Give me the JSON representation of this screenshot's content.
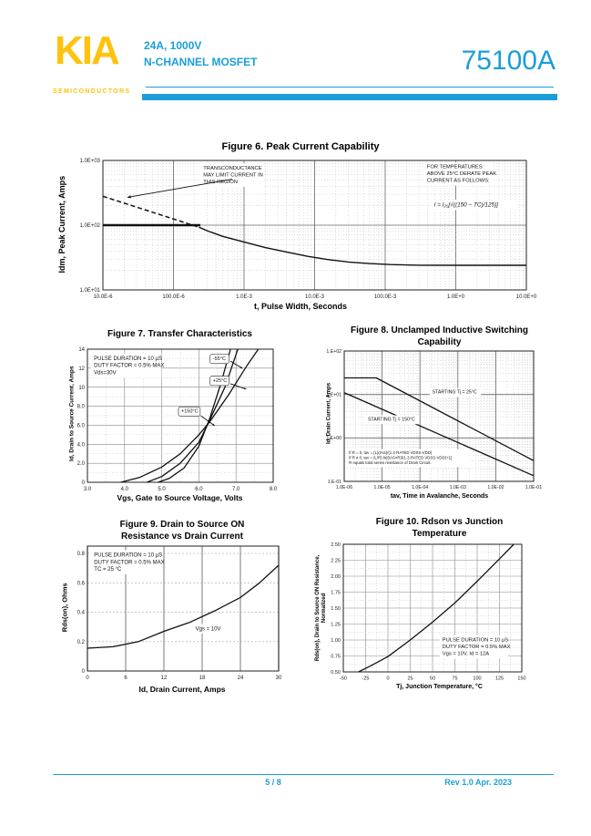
{
  "header": {
    "logo": "KIA",
    "logo_sub": "SEMICONDUCTORS",
    "subtitle_line1": "24A, 1000V",
    "subtitle_line2": "N-CHANNEL MOSFET",
    "part_number": "75100A",
    "accent_color": "#1B9DD9",
    "logo_color": "#FFC20E"
  },
  "footer": {
    "page": "5 / 8",
    "revision": "Rev 1.0 Apr. 2023"
  },
  "chart_data": [
    {
      "id": "fig6",
      "type": "line",
      "title": "Figure 6. Peak Current Capability",
      "xlabel": "t, Pulse Width, Seconds",
      "ylabel": "Idm, Peak Current, Amps",
      "xscale": "log",
      "yscale": "log",
      "xlim": [
        1e-05,
        10
      ],
      "ylim": [
        10,
        1000
      ],
      "xticks": [
        {
          "v": 1e-05,
          "label": "10.0E-6"
        },
        {
          "v": 0.0001,
          "label": "100.0E-6"
        },
        {
          "v": 0.001,
          "label": "1.0E-3"
        },
        {
          "v": 0.01,
          "label": "10.0E-3"
        },
        {
          "v": 0.1,
          "label": "100.0E-3"
        },
        {
          "v": 1,
          "label": "1.0E+0"
        },
        {
          "v": 10,
          "label": "10.0E+0"
        }
      ],
      "yticks": [
        {
          "v": 1000,
          "label": "1.0E+03"
        },
        {
          "v": 100,
          "label": "1.0E+02"
        },
        {
          "v": 10,
          "label": "1.0E+01"
        }
      ],
      "series": [
        {
          "name": "transconductance-limit",
          "dash": "5,3",
          "width": 1.5,
          "points": [
            [
              1e-05,
              280
            ],
            [
              0.00023,
              93
            ]
          ]
        },
        {
          "name": "idm-pulsed-limit-100A",
          "width": 2.6,
          "points": [
            [
              1e-05,
              100
            ],
            [
              0.00024,
              100
            ]
          ]
        },
        {
          "name": "peak-current-capability",
          "width": 1.4,
          "points": [
            [
              0.00023,
              93
            ],
            [
              0.0003,
              82
            ],
            [
              0.0005,
              67
            ],
            [
              0.001,
              55
            ],
            [
              0.002,
              45
            ],
            [
              0.004,
              38.5
            ],
            [
              0.008,
              33
            ],
            [
              0.015,
              29.5
            ],
            [
              0.03,
              27
            ],
            [
              0.06,
              25.5
            ],
            [
              0.12,
              24.6
            ],
            [
              0.3,
              24.1
            ],
            [
              1,
              24
            ],
            [
              10,
              24
            ]
          ]
        }
      ],
      "annotations": [
        {
          "lines": [
            "TRANSCONDUCTANCE",
            "MAY LIMIT CURRENT IN",
            "THIS REGION"
          ],
          "fx": 0.235,
          "fy": 0.03,
          "size": 5.8
        },
        {
          "lines": [
            "FOR TEMPERATURES",
            "ABOVE 25°C DERATE PEAK",
            "CURRENT AS FOLLOWS:"
          ],
          "fx": 0.763,
          "fy": 0.02,
          "size": 5.8
        },
        {
          "lines": [
            "I = I₂₅[√((150 − TC)/125)]"
          ],
          "fx": 0.78,
          "fy": 0.31,
          "size": 6.4,
          "italic": true
        }
      ],
      "arrows": [
        {
          "f": [
            0.305,
            0.145
          ],
          "t": [
            0.058,
            0.285
          ]
        }
      ]
    },
    {
      "id": "fig7",
      "type": "line",
      "title": "Figure 7. Transfer Characteristics",
      "xlabel": "Vgs, Gate to Source Voltage, Volts",
      "ylabel": "Id, Drain to Source Current, Amps",
      "xscale": "linear",
      "yscale": "linear",
      "xlim": [
        3,
        8
      ],
      "ylim": [
        0,
        14
      ],
      "xticks": [
        {
          "v": 3,
          "label": "3.0"
        },
        {
          "v": 4,
          "label": "4.0"
        },
        {
          "v": 5,
          "label": "5.0"
        },
        {
          "v": 6,
          "label": "6.0"
        },
        {
          "v": 7,
          "label": "7.0"
        },
        {
          "v": 8,
          "label": "8.0"
        }
      ],
      "yticks": [
        {
          "v": 14,
          "label": "14"
        },
        {
          "v": 12,
          "label": "12"
        },
        {
          "v": 10,
          "label": "10"
        },
        {
          "v": 8,
          "label": "8.0"
        },
        {
          "v": 6,
          "label": "6.0"
        },
        {
          "v": 4,
          "label": "4.0"
        },
        {
          "v": 2,
          "label": "2.0"
        },
        {
          "v": 0,
          "label": "0"
        }
      ],
      "series": [
        {
          "name": "-55°C",
          "width": 1.3,
          "points": [
            [
              4.9,
              0
            ],
            [
              5.2,
              0.4
            ],
            [
              5.6,
              1.5
            ],
            [
              6.0,
              3.8
            ],
            [
              6.3,
              6.8
            ],
            [
              6.6,
              10.5
            ],
            [
              6.85,
              14
            ]
          ]
        },
        {
          "name": "+25°C",
          "width": 1.3,
          "points": [
            [
              4.6,
              0
            ],
            [
              5.0,
              0.6
            ],
            [
              5.5,
              2.0
            ],
            [
              6.0,
              4.2
            ],
            [
              6.3,
              6.6
            ],
            [
              6.7,
              10.0
            ],
            [
              7.05,
              14
            ]
          ]
        },
        {
          "name": "+150°C",
          "width": 1.3,
          "points": [
            [
              3.9,
              0
            ],
            [
              4.4,
              0.5
            ],
            [
              5.0,
              1.6
            ],
            [
              5.5,
              3.0
            ],
            [
              6.0,
              5.0
            ],
            [
              6.3,
              6.4
            ],
            [
              6.8,
              9.2
            ],
            [
              7.3,
              12.3
            ],
            [
              7.6,
              14
            ]
          ]
        }
      ],
      "annotations": [
        {
          "lines": [
            "PULSE DURATION = 10 µS",
            "DUTY FACTOR = 0.5% MAX",
            "Vds=30V"
          ],
          "fx": 0.03,
          "fy": 0.04,
          "size": 6
        },
        {
          "lines": [
            "-55°C"
          ],
          "fx": 0.67,
          "fy": 0.045,
          "size": 5.5,
          "border": true
        },
        {
          "lines": [
            "+25°C"
          ],
          "fx": 0.67,
          "fy": 0.21,
          "size": 5.5,
          "border": true
        },
        {
          "lines": [
            "+150°C"
          ],
          "fx": 0.5,
          "fy": 0.44,
          "size": 5.5,
          "border": true
        }
      ],
      "arrows": [
        {
          "f": [
            0.77,
            0.09
          ],
          "t": [
            0.835,
            0.145
          ]
        },
        {
          "f": [
            0.77,
            0.26
          ],
          "t": [
            0.855,
            0.3
          ]
        },
        {
          "f": [
            0.61,
            0.5
          ],
          "t": [
            0.685,
            0.575
          ]
        }
      ]
    },
    {
      "id": "fig8",
      "type": "line",
      "title": "Figure 8. Unclamped Inductive Switching\nCapability",
      "xlabel": "tav, Time in Avalanche, Seconds",
      "ylabel": "Id, Drain Current, Amps",
      "xscale": "log",
      "yscale": "log",
      "xlim": [
        1e-06,
        0.1
      ],
      "ylim": [
        0.1,
        100
      ],
      "xticks": [
        {
          "v": 1e-06,
          "label": "1.0E-06"
        },
        {
          "v": 1e-05,
          "label": "1.0E-05"
        },
        {
          "v": 0.0001,
          "label": "1.0E-04"
        },
        {
          "v": 0.001,
          "label": "1.0E-03"
        },
        {
          "v": 0.01,
          "label": "1.0E-02"
        },
        {
          "v": 0.1,
          "label": "1.0E-01"
        }
      ],
      "yticks": [
        {
          "v": 100,
          "label": "1.E+02"
        },
        {
          "v": 10,
          "label": "1.E+01"
        },
        {
          "v": 1,
          "label": "1.E+00"
        },
        {
          "v": 0.1,
          "label": "1.E-01"
        }
      ],
      "series": [
        {
          "name": "starting-tj-25C",
          "width": 1.3,
          "points": [
            [
              1e-06,
              24
            ],
            [
              7e-06,
              24
            ],
            [
              0.1,
              0.3
            ]
          ]
        },
        {
          "name": "starting-tj-150C",
          "width": 1.3,
          "points": [
            [
              1e-06,
              11
            ],
            [
              0.1,
              0.135
            ]
          ]
        }
      ],
      "annotations": [
        {
          "lines": [
            "STARTING Tj = 25°C"
          ],
          "fx": 0.46,
          "fy": 0.29,
          "size": 5.2
        },
        {
          "lines": [
            "STARTING Tj = 150°C"
          ],
          "fx": 0.12,
          "fy": 0.5,
          "size": 5.2
        },
        {
          "lines": [
            "If R = 0, tav = (L)(IAS)/(1.3·RATED VDSS-VDD)",
            "If R ≠ 0, tav = (L/R)·ln[(IAS×R)/(1.3·RATED VDSS-VDD)+1]",
            "R equals total series resistance of Drain Circuit."
          ],
          "fx": 0.02,
          "fy": 0.76,
          "size": 4.3
        }
      ],
      "arrows": []
    },
    {
      "id": "fig9",
      "type": "line",
      "title": "Figure 9. Drain to Source ON\nResistance vs Drain Current",
      "xlabel": "Id, Drain Current, Amps",
      "ylabel": "Rds(on), Ohms",
      "xscale": "linear",
      "yscale": "linear",
      "xlim": [
        0,
        30
      ],
      "ylim": [
        0,
        0.85
      ],
      "xticks": [
        {
          "v": 0,
          "label": "0"
        },
        {
          "v": 6,
          "label": "6"
        },
        {
          "v": 12,
          "label": "12"
        },
        {
          "v": 18,
          "label": "18"
        },
        {
          "v": 24,
          "label": "24"
        },
        {
          "v": 30,
          "label": "30"
        }
      ],
      "yticks": [
        {
          "v": 0.8,
          "label": "0.8"
        },
        {
          "v": 0.6,
          "label": "0.6"
        },
        {
          "v": 0.4,
          "label": "0.4"
        },
        {
          "v": 0.2,
          "label": "0.2"
        },
        {
          "v": 0,
          "label": "0"
        }
      ],
      "series": [
        {
          "name": "rdson-vs-id",
          "width": 1.3,
          "points": [
            [
              0,
              0.155
            ],
            [
              4,
              0.165
            ],
            [
              8,
              0.2
            ],
            [
              12,
              0.27
            ],
            [
              16,
              0.33
            ],
            [
              20,
              0.41
            ],
            [
              24,
              0.5
            ],
            [
              27,
              0.6
            ],
            [
              30,
              0.72
            ]
          ]
        }
      ],
      "annotations": [
        {
          "lines": [
            "PULSE DURATION = 10 µS",
            "DUTY FACTOR = 0.5% MAX",
            "TC = 25 °C"
          ],
          "fx": 0.03,
          "fy": 0.04,
          "size": 6
        },
        {
          "lines": [
            "Vgs = 10V"
          ],
          "fx": 0.56,
          "fy": 0.63,
          "size": 6
        }
      ],
      "arrows": []
    },
    {
      "id": "fig10",
      "type": "line",
      "title": "Figure 10. Rdson vs Junction\nTemperature",
      "xlabel": "Tj, Junction Temperature, °C",
      "ylabel": "Rds(on), Drain to Source ON Resistance,\nNormalized",
      "xscale": "linear",
      "yscale": "linear",
      "xlim": [
        -50,
        150
      ],
      "ylim": [
        0.5,
        2.5
      ],
      "xticks": [
        {
          "v": -50,
          "label": "-50"
        },
        {
          "v": -25,
          "label": "-25"
        },
        {
          "v": 0,
          "label": "0"
        },
        {
          "v": 25,
          "label": "25"
        },
        {
          "v": 50,
          "label": "50"
        },
        {
          "v": 75,
          "label": "75"
        },
        {
          "v": 100,
          "label": "100"
        },
        {
          "v": 125,
          "label": "125"
        },
        {
          "v": 150,
          "label": "150"
        }
      ],
      "yticks": [
        {
          "v": 2.5,
          "label": "2.50"
        },
        {
          "v": 2.25,
          "label": "2.25"
        },
        {
          "v": 2.0,
          "label": "2.00"
        },
        {
          "v": 1.75,
          "label": "1.75"
        },
        {
          "v": 1.5,
          "label": "1.50"
        },
        {
          "v": 1.25,
          "label": "1.25"
        },
        {
          "v": 1.0,
          "label": "1.00"
        },
        {
          "v": 0.75,
          "label": "0.75"
        },
        {
          "v": 0.5,
          "label": "0.50"
        }
      ],
      "series": [
        {
          "name": "normalized-rdson",
          "width": 1.3,
          "points": [
            [
              -33,
              0.5
            ],
            [
              -20,
              0.59
            ],
            [
              0,
              0.74
            ],
            [
              25,
              1.0
            ],
            [
              50,
              1.28
            ],
            [
              75,
              1.58
            ],
            [
              100,
              1.92
            ],
            [
              125,
              2.27
            ],
            [
              141,
              2.5
            ]
          ]
        }
      ],
      "annotations": [
        {
          "lines": [
            "PULSE DURATION = 10 µS",
            "DUTY FACTOR = 0.5% MAX",
            "Vgs = 10V, Id = 12A"
          ],
          "fx": 0.55,
          "fy": 0.72,
          "size": 5.8
        }
      ],
      "arrows": []
    }
  ]
}
